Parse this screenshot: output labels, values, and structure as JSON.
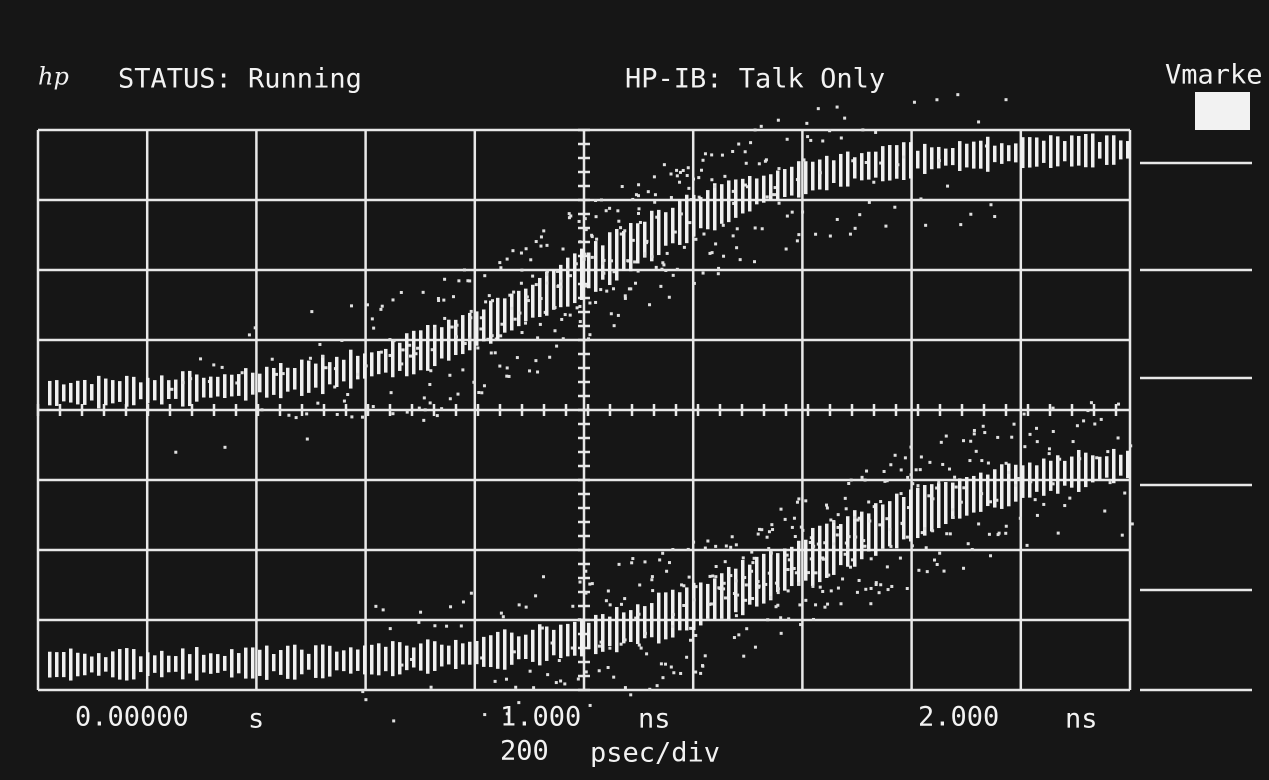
{
  "header": {
    "logo": "hp",
    "status": "STATUS: Running",
    "interface": "HP-IB: Talk Only",
    "marker_label": "Vmarke"
  },
  "time_axis": {
    "labels": [
      {
        "value": "0.00000",
        "unit": "s"
      },
      {
        "value": "1.000",
        "unit": "ns"
      },
      {
        "value": "2.000",
        "unit": "ns"
      }
    ],
    "scale": {
      "value": "200",
      "unit": "psec/div"
    }
  }
}
